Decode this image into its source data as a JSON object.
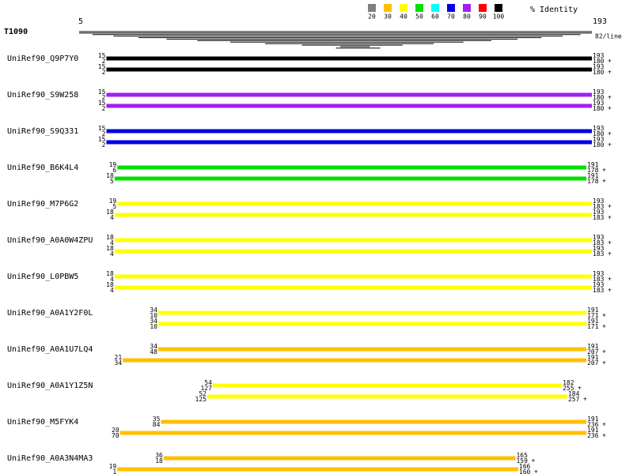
{
  "header": {
    "query": "T1090",
    "start": 5,
    "end": 193,
    "per_line": "82/line",
    "identity_label": "% Identity"
  },
  "legend": [
    {
      "label": "20",
      "color": "#808080"
    },
    {
      "label": "30",
      "color": "#ffbf00"
    },
    {
      "label": "40",
      "color": "#ffff00"
    },
    {
      "label": "50",
      "color": "#00e000"
    },
    {
      "label": "60",
      "color": "#00ffff"
    },
    {
      "label": "70",
      "color": "#0000e0"
    },
    {
      "label": "80",
      "color": "#a020f0"
    },
    {
      "label": "90",
      "color": "#ff0000"
    },
    {
      "label": "100",
      "color": "#000000"
    }
  ],
  "hits": [
    {
      "name": "UniRef90_Q9P7Y0",
      "color": "#000000",
      "bars": [
        {
          "q_start": 15,
          "s_start": 2,
          "q_end": 193,
          "s_end": 180,
          "strand": "+"
        },
        {
          "q_start": 15,
          "s_start": 2,
          "q_end": 193,
          "s_end": 180,
          "strand": "+"
        }
      ]
    },
    {
      "name": "UniRef90_S9W258",
      "color": "#a020f0",
      "bars": [
        {
          "q_start": 15,
          "s_start": 2,
          "q_end": 193,
          "s_end": 180,
          "strand": "+"
        },
        {
          "q_start": 15,
          "s_start": 2,
          "q_end": 193,
          "s_end": 180,
          "strand": "+"
        }
      ]
    },
    {
      "name": "UniRef90_S9Q331",
      "color": "#0000e0",
      "bars": [
        {
          "q_start": 15,
          "s_start": 2,
          "q_end": 193,
          "s_end": 180,
          "strand": "+"
        },
        {
          "q_start": 15,
          "s_start": 2,
          "q_end": 193,
          "s_end": 180,
          "strand": "+"
        }
      ]
    },
    {
      "name": "UniRef90_B6K4L4",
      "color": "#00e000",
      "bars": [
        {
          "q_start": 19,
          "s_start": 6,
          "q_end": 191,
          "s_end": 178,
          "strand": "+"
        },
        {
          "q_start": 18,
          "s_start": 5,
          "q_end": 191,
          "s_end": 178,
          "strand": "+"
        }
      ]
    },
    {
      "name": "UniRef90_M7P6G2",
      "color": "#ffff00",
      "bars": [
        {
          "q_start": 19,
          "s_start": 5,
          "q_end": 193,
          "s_end": 183,
          "strand": "+"
        },
        {
          "q_start": 18,
          "s_start": 4,
          "q_end": 193,
          "s_end": 183,
          "strand": "+"
        }
      ]
    },
    {
      "name": "UniRef90_A0A0W4ZPU",
      "color": "#ffff00",
      "bars": [
        {
          "q_start": 18,
          "s_start": 4,
          "q_end": 193,
          "s_end": 183,
          "strand": "+"
        },
        {
          "q_start": 18,
          "s_start": 4,
          "q_end": 193,
          "s_end": 183,
          "strand": "+"
        }
      ]
    },
    {
      "name": "UniRef90_L0PBW5",
      "color": "#ffff00",
      "bars": [
        {
          "q_start": 18,
          "s_start": 4,
          "q_end": 193,
          "s_end": 183,
          "strand": "+"
        },
        {
          "q_start": 18,
          "s_start": 4,
          "q_end": 193,
          "s_end": 183,
          "strand": "+"
        }
      ]
    },
    {
      "name": "UniRef90_A0A1Y2F0L",
      "color": "#ffff00",
      "bars": [
        {
          "q_start": 34,
          "s_start": 10,
          "q_end": 191,
          "s_end": 171,
          "strand": "+"
        },
        {
          "q_start": 34,
          "s_start": 10,
          "q_end": 191,
          "s_end": 171,
          "strand": "+"
        }
      ]
    },
    {
      "name": "UniRef90_A0A1U7LQ4",
      "color": "#ffbf00",
      "bars": [
        {
          "q_start": 34,
          "s_start": 48,
          "q_end": 191,
          "s_end": 207,
          "strand": "+"
        },
        {
          "q_start": 21,
          "s_start": 34,
          "q_end": 191,
          "s_end": 207,
          "strand": "+"
        }
      ]
    },
    {
      "name": "UniRef90_A0A1Y1Z5N",
      "color": "#ffff00",
      "bars": [
        {
          "q_start": 54,
          "s_start": 127,
          "q_end": 182,
          "s_end": 255,
          "strand": "+"
        },
        {
          "q_start": 52,
          "s_start": 125,
          "q_end": 184,
          "s_end": 257,
          "strand": "+"
        }
      ]
    },
    {
      "name": "UniRef90_M5FYK4",
      "color": "#ffbf00",
      "bars": [
        {
          "q_start": 35,
          "s_start": 84,
          "q_end": 191,
          "s_end": 236,
          "strand": "+"
        },
        {
          "q_start": 20,
          "s_start": 70,
          "q_end": 191,
          "s_end": 236,
          "strand": "+"
        }
      ]
    },
    {
      "name": "UniRef90_A0A3N4MA3",
      "color": "#ffbf00",
      "bars": [
        {
          "q_start": 36,
          "s_start": 18,
          "q_end": 165,
          "s_end": 159,
          "strand": "+"
        },
        {
          "q_start": 19,
          "s_start": 1,
          "q_end": 166,
          "s_end": 160,
          "strand": "+"
        }
      ]
    }
  ]
}
